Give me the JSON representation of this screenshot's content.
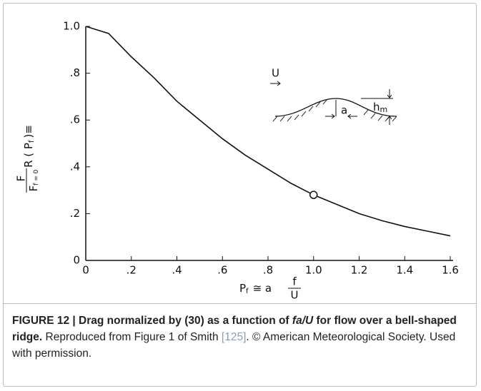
{
  "chart_data": {
    "type": "line",
    "x": [
      0,
      0.1,
      0.2,
      0.3,
      0.4,
      0.5,
      0.6,
      0.7,
      0.8,
      0.9,
      1.0,
      1.1,
      1.2,
      1.3,
      1.4,
      1.5,
      1.6
    ],
    "values": [
      1.0,
      0.97,
      0.87,
      0.78,
      0.68,
      0.6,
      0.52,
      0.45,
      0.39,
      0.33,
      0.28,
      0.24,
      0.2,
      0.17,
      0.145,
      0.125,
      0.105
    ],
    "color": "#111111",
    "markers": [
      {
        "x": 1.0,
        "y": 0.28
      }
    ],
    "xlim": [
      0,
      1.6
    ],
    "ylim": [
      0,
      1.0
    ],
    "xticks": [
      0,
      {
        "value": 0.2,
        "label": ".2"
      },
      {
        "value": 0.4,
        "label": ".4"
      },
      {
        "value": 0.6,
        "label": ".6"
      },
      {
        "value": 0.8,
        "label": ".8"
      },
      {
        "value": 1.0,
        "label": "1.0"
      },
      1.2,
      1.4,
      1.6
    ],
    "yticks": [
      0,
      {
        "value": 0.2,
        "label": ".2"
      },
      {
        "value": 0.4,
        "label": ".4"
      },
      {
        "value": 0.6,
        "label": ".6"
      },
      {
        "value": 0.8,
        "label": ".8"
      },
      {
        "value": 1.0,
        "label": "1.0"
      }
    ],
    "ylabel": {
      "a": "R ( P",
      "sub": "f",
      "b": ")≡",
      "num": "F",
      "den": "F",
      "den_sub": "f = 0"
    },
    "xlabel": {
      "a": "P",
      "sub": "f",
      "b": "≅ a",
      "num": "f",
      "den": "U"
    },
    "inset": {
      "u": "U",
      "h": "h",
      "h_sub": "m",
      "a": "a"
    }
  },
  "caption": {
    "bold_1": "FIGURE 12 | Drag normalized by (30) as a function of ",
    "italic": "fa/U",
    "bold_2": " for flow over a bell-shaped ridge.",
    "text_1": " Reproduced from Figure 1 of Smith ",
    "ref": "[125]",
    "text_2": ". © American Meteorological Society. Used with permission."
  }
}
